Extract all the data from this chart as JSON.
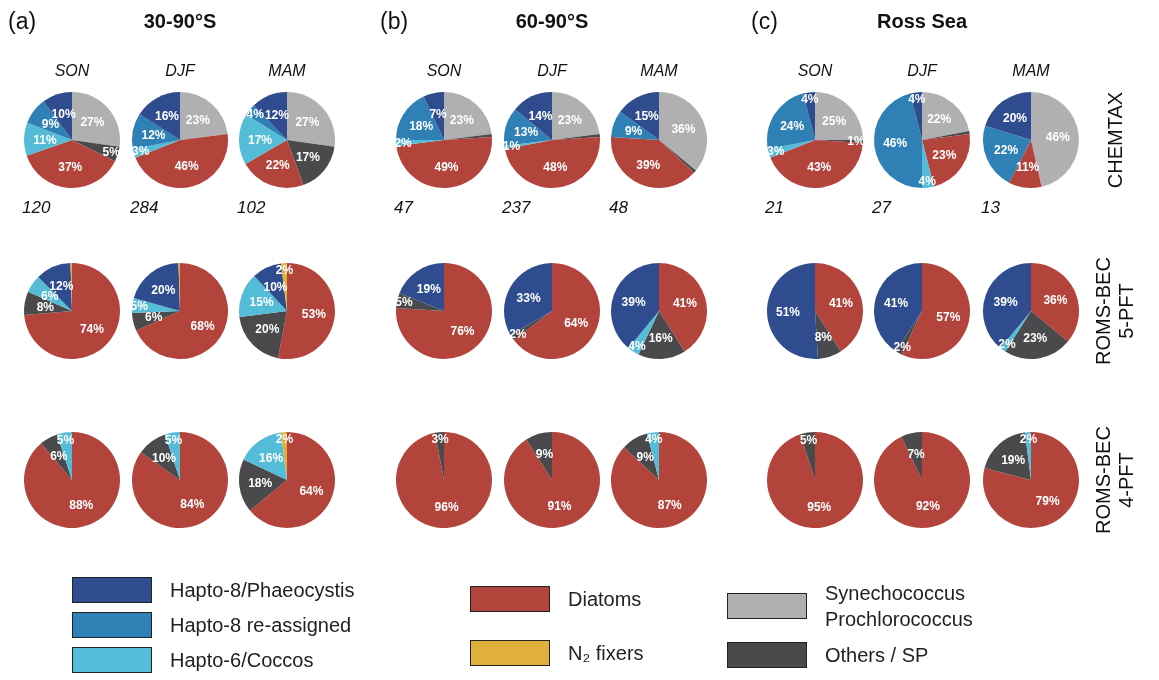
{
  "chart_data": [
    {
      "type": "pie",
      "title": "(a)",
      "subtitle": "SON",
      "annotations": [
        "120"
      ],
      "legend": "bottom",
      "categories": [
        "Synechococcus Prochlorococcus",
        "Others / SP",
        "Diatoms",
        "Hapto-6/Coccos",
        "Hapto-8 re-assigned",
        "Hapto-8/Phaeocystis"
      ],
      "values": [
        27,
        5,
        37,
        11,
        9,
        10
      ],
      "colors": [
        "#b0b0b2",
        "#4a4a4c",
        "#b3443c",
        "#55bcd8",
        "#2f80b4",
        "#2f4d8e"
      ],
      "value_labels": [
        "27%",
        "5%",
        "37%",
        "11%",
        "9%",
        "10%"
      ]
    },
    {
      "type": "pie",
      "title": "30-90°S",
      "subtitle": "DJF",
      "annotations": [
        "284"
      ],
      "categories": [
        null,
        null,
        null,
        null,
        null
      ],
      "values": [
        23,
        46,
        3,
        12,
        16
      ],
      "colors": [
        "#b0b0b2",
        "#b3443c",
        "#55bcd8",
        "#2f80b4",
        "#2f4d8e"
      ],
      "value_labels": [
        "23%",
        "46%",
        "3%",
        "12%",
        "16%"
      ]
    },
    {
      "type": "pie",
      "subtitle": "MAM",
      "annotations": [
        "102"
      ],
      "categories": [
        null,
        null,
        null,
        null,
        null,
        null
      ],
      "values": [
        27,
        17,
        22,
        17,
        4,
        12
      ],
      "colors": [
        "#b0b0b2",
        "#4a4a4c",
        "#b3443c",
        "#55bcd8",
        "#2f80b4",
        "#2f4d8e"
      ],
      "value_labels": [
        "27%",
        "17%",
        "22%",
        "17%",
        "4%",
        "12%"
      ]
    },
    {
      "type": "pie",
      "title": "(b)",
      "subtitle": "SON",
      "annotations": [
        "47"
      ],
      "categories": [
        null,
        null,
        null,
        null,
        null,
        null
      ],
      "values": [
        23,
        1,
        49,
        2,
        18,
        7
      ],
      "colors": [
        "#b0b0b2",
        "#4a4a4c",
        "#b3443c",
        "#55bcd8",
        "#2f80b4",
        "#2f4d8e"
      ],
      "value_labels": [
        "23%",
        null,
        "49%",
        "2%",
        "18%",
        "7%"
      ]
    },
    {
      "type": "pie",
      "title": "60-90°S",
      "subtitle": "DJF",
      "annotations": [
        "237"
      ],
      "categories": [
        null,
        null,
        null,
        null,
        null,
        null
      ],
      "values": [
        23,
        1,
        48,
        1,
        13,
        14
      ],
      "colors": [
        "#b0b0b2",
        "#4a4a4c",
        "#b3443c",
        "#55bcd8",
        "#2f80b4",
        "#2f4d8e"
      ],
      "value_labels": [
        "23%",
        null,
        "48%",
        "1%",
        "13%",
        "14%"
      ]
    },
    {
      "type": "pie",
      "subtitle": "MAM",
      "annotations": [
        "48"
      ],
      "categories": [
        null,
        null,
        null,
        null,
        null
      ],
      "values": [
        36,
        1,
        39,
        9,
        15
      ],
      "colors": [
        "#b0b0b2",
        "#4a4a4c",
        "#b3443c",
        "#2f80b4",
        "#2f4d8e"
      ],
      "value_labels": [
        "36%",
        null,
        "39%",
        "9%",
        "15%"
      ]
    },
    {
      "type": "pie",
      "title": "(c)",
      "subtitle": "SON",
      "annotations": [
        "21"
      ],
      "categories": [
        null,
        null,
        null,
        null,
        null,
        null
      ],
      "values": [
        25,
        1,
        43,
        3,
        24,
        4
      ],
      "colors": [
        "#b0b0b2",
        "#4a4a4c",
        "#b3443c",
        "#55bcd8",
        "#2f80b4",
        "#2f4d8e"
      ],
      "value_labels": [
        "25%",
        "1%",
        "43%",
        "3%",
        "24%",
        "4%"
      ]
    },
    {
      "type": "pie",
      "title": "Ross Sea",
      "subtitle": "DJF",
      "annotations": [
        "27"
      ],
      "categories": [
        null,
        null,
        null,
        null,
        null,
        null
      ],
      "values": [
        22,
        1,
        23,
        4,
        46,
        4
      ],
      "colors": [
        "#b0b0b2",
        "#4a4a4c",
        "#b3443c",
        "#55bcd8",
        "#2f80b4",
        "#2f4d8e"
      ],
      "value_labels": [
        "22%",
        null,
        "23%",
        "4%",
        "46%",
        "4%"
      ]
    },
    {
      "type": "pie",
      "subtitle": "MAM",
      "annotations": [
        "13"
      ],
      "ylabel": "CHEMTAX",
      "categories": [
        null,
        null,
        null,
        null
      ],
      "values": [
        46,
        11,
        22,
        20
      ],
      "colors": [
        "#b0b0b2",
        "#b3443c",
        "#2f80b4",
        "#2f4d8e"
      ],
      "value_labels": [
        "46%",
        "11%",
        "22%",
        "20%"
      ]
    },
    {
      "type": "pie",
      "legend": "bottom",
      "categories": [
        null,
        null,
        null,
        null,
        "N₂ fixers"
      ],
      "values": [
        74,
        8,
        6,
        12,
        0.5
      ],
      "colors": [
        "#b3443c",
        "#4a4a4c",
        "#55bcd8",
        "#2f4d8e",
        "#e0b03c"
      ],
      "value_labels": [
        "74%",
        "8%",
        "6%",
        "12%",
        null
      ]
    },
    {
      "type": "pie",
      "categories": [
        null,
        null,
        null,
        null,
        null
      ],
      "values": [
        68,
        6,
        5,
        20,
        0.5
      ],
      "colors": [
        "#b3443c",
        "#4a4a4c",
        "#55bcd8",
        "#2f4d8e",
        "#e0b03c"
      ],
      "value_labels": [
        "68%",
        "6%",
        "5%",
        "20%",
        null
      ]
    },
    {
      "type": "pie",
      "categories": [
        null,
        null,
        null,
        null,
        null
      ],
      "values": [
        53,
        20,
        15,
        10,
        2
      ],
      "colors": [
        "#b3443c",
        "#4a4a4c",
        "#55bcd8",
        "#2f4d8e",
        "#e0b03c"
      ],
      "value_labels": [
        "53%",
        "20%",
        "15%",
        "10%",
        "2%"
      ]
    },
    {
      "type": "pie",
      "categories": [
        null,
        null,
        null
      ],
      "values": [
        76,
        5,
        19
      ],
      "colors": [
        "#b3443c",
        "#4a4a4c",
        "#2f4d8e"
      ],
      "value_labels": [
        "76%",
        "5%",
        "19%"
      ]
    },
    {
      "type": "pie",
      "categories": [
        null,
        null,
        null
      ],
      "values": [
        64,
        2,
        33
      ],
      "colors": [
        "#b3443c",
        "#4a4a4c",
        "#2f4d8e"
      ],
      "value_labels": [
        "64%",
        "2%",
        "33%"
      ]
    },
    {
      "type": "pie",
      "categories": [
        null,
        null,
        null,
        null
      ],
      "values": [
        41,
        16,
        4,
        39
      ],
      "colors": [
        "#b3443c",
        "#4a4a4c",
        "#55bcd8",
        "#2f4d8e"
      ],
      "value_labels": [
        "41%",
        "16%",
        "4%",
        "39%"
      ]
    },
    {
      "type": "pie",
      "categories": [
        null,
        null,
        null
      ],
      "values": [
        41,
        8,
        51
      ],
      "colors": [
        "#b3443c",
        "#4a4a4c",
        "#2f4d8e"
      ],
      "value_labels": [
        "41%",
        "8%",
        "51%"
      ]
    },
    {
      "type": "pie",
      "categories": [
        null,
        null,
        null
      ],
      "values": [
        57,
        2,
        41
      ],
      "colors": [
        "#b3443c",
        "#4a4a4c",
        "#2f4d8e"
      ],
      "value_labels": [
        "57%",
        "2%",
        "41%"
      ]
    },
    {
      "type": "pie",
      "ylabel": "ROMS-BEC 5-PFT",
      "categories": [
        null,
        null,
        null,
        null
      ],
      "values": [
        36,
        23,
        2,
        39
      ],
      "colors": [
        "#b3443c",
        "#4a4a4c",
        "#55bcd8",
        "#2f4d8e"
      ],
      "value_labels": [
        "36%",
        "23%",
        "2%",
        "39%"
      ]
    },
    {
      "type": "pie",
      "categories": [
        null,
        null,
        null
      ],
      "values": [
        88,
        6,
        5
      ],
      "colors": [
        "#b3443c",
        "#4a4a4c",
        "#55bcd8"
      ],
      "value_labels": [
        "88%",
        "6%",
        "5%"
      ]
    },
    {
      "type": "pie",
      "categories": [
        null,
        null,
        null
      ],
      "values": [
        84,
        10,
        5
      ],
      "colors": [
        "#b3443c",
        "#4a4a4c",
        "#55bcd8"
      ],
      "value_labels": [
        "84%",
        "10%",
        "5%"
      ]
    },
    {
      "type": "pie",
      "categories": [
        null,
        null,
        null,
        null
      ],
      "values": [
        64,
        18,
        16,
        2
      ],
      "colors": [
        "#b3443c",
        "#4a4a4c",
        "#55bcd8",
        "#e0b03c"
      ],
      "value_labels": [
        "64%",
        "18%",
        "16%",
        "2%"
      ]
    },
    {
      "type": "pie",
      "categories": [
        null,
        null
      ],
      "values": [
        96,
        3
      ],
      "colors": [
        "#b3443c",
        "#4a4a4c"
      ],
      "value_labels": [
        "96%",
        "3%"
      ]
    },
    {
      "type": "pie",
      "categories": [
        null,
        null
      ],
      "values": [
        91,
        9
      ],
      "colors": [
        "#b3443c",
        "#4a4a4c"
      ],
      "value_labels": [
        "91%",
        "9%"
      ]
    },
    {
      "type": "pie",
      "categories": [
        null,
        null,
        null
      ],
      "values": [
        87,
        9,
        4
      ],
      "colors": [
        "#b3443c",
        "#4a4a4c",
        "#55bcd8"
      ],
      "value_labels": [
        "87%",
        "9%",
        "4%"
      ]
    },
    {
      "type": "pie",
      "categories": [
        null,
        null
      ],
      "values": [
        95,
        5
      ],
      "colors": [
        "#b3443c",
        "#4a4a4c"
      ],
      "value_labels": [
        "95%",
        "5%"
      ]
    },
    {
      "type": "pie",
      "categories": [
        null,
        null
      ],
      "values": [
        92,
        7
      ],
      "colors": [
        "#b3443c",
        "#4a4a4c"
      ],
      "value_labels": [
        "92%",
        "7%"
      ]
    },
    {
      "type": "pie",
      "ylabel": "ROMS-BEC 4-PFT",
      "categories": [
        null,
        null,
        null
      ],
      "values": [
        79,
        19,
        2
      ],
      "colors": [
        "#b3443c",
        "#4a4a4c",
        "#55bcd8"
      ],
      "value_labels": [
        "79%",
        "19%",
        "2%"
      ]
    }
  ]
}
